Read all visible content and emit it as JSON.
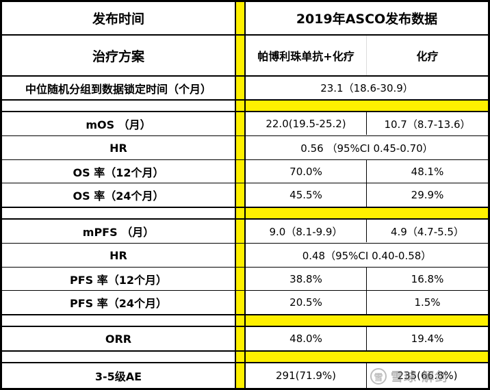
{
  "header": {
    "release_time": "发布时间",
    "release_data": "2019年ASCO发布数据",
    "regimen": "治疗方案",
    "arm_combo": "帕博利珠单抗+化疗",
    "arm_chemo": "化疗"
  },
  "rows": {
    "median_followup": {
      "label": "中位随机分组到数据锁定时间（个月）",
      "value": "23.1（18.6-30.9）"
    },
    "mos": {
      "label": "mOS （月）",
      "combo": "22.0(19.5-25.2)",
      "chemo": "10.7（8.7-13.6）"
    },
    "os_hr": {
      "label": "HR",
      "value": "0.56 （95%CI 0.45-0.70）"
    },
    "os12": {
      "label": "OS 率（12个月）",
      "combo": "70.0%",
      "chemo": "48.1%"
    },
    "os24": {
      "label": "OS 率（24个月）",
      "combo": "45.5%",
      "chemo": "29.9%"
    },
    "mpfs": {
      "label": "mPFS （月）",
      "combo": "9.0（8.1-9.9）",
      "chemo": "4.9（4.7-5.5）"
    },
    "pfs_hr": {
      "label": "HR",
      "value": "0.48（95%CI 0.40-0.58）"
    },
    "pfs12": {
      "label": "PFS 率（12个月）",
      "combo": "38.8%",
      "chemo": "16.8%"
    },
    "pfs24": {
      "label": "PFS 率（24个月）",
      "combo": "20.5%",
      "chemo": "1.5%"
    },
    "orr": {
      "label": "ORR",
      "combo": "48.0%",
      "chemo": "19.4%"
    },
    "ae": {
      "label": "3-5级AE",
      "combo": "291(71.9%)",
      "chemo": "235(66.8%)"
    }
  },
  "watermark": {
    "logo": "雪",
    "text": "雪球 解剑"
  },
  "colors": {
    "accent_yellow": "#fff000",
    "grid": "#000000"
  }
}
